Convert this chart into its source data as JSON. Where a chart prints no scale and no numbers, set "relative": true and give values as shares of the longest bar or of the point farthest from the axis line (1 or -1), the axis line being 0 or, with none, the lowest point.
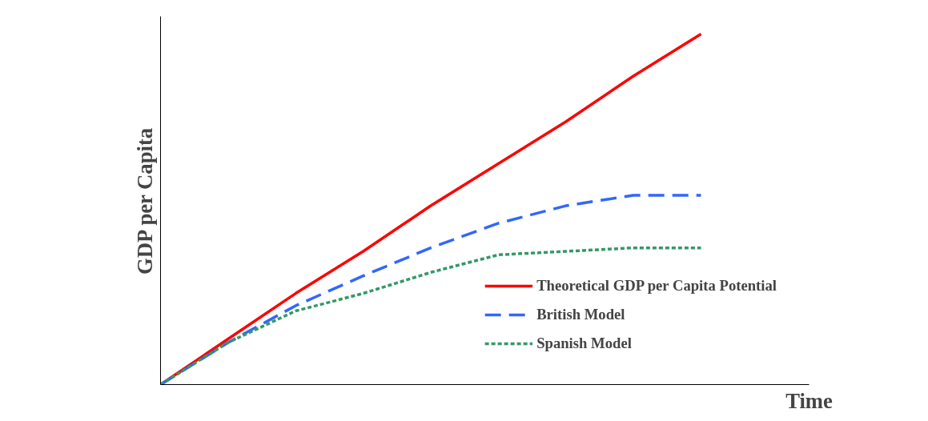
{
  "chart_data": {
    "type": "line",
    "relative": true,
    "xlabel": "Time",
    "ylabel": "GDP per Capita",
    "categories": [
      null,
      null,
      null,
      null,
      null,
      null,
      null,
      null,
      null
    ],
    "series": [
      {
        "name": "Theoretical GDP per Capita Potential",
        "color": "#ff0000",
        "line_style": "solid",
        "values": [
          0,
          0.13,
          0.26,
          0.38,
          0.51,
          0.63,
          0.75,
          0.88,
          1.0
        ]
      },
      {
        "name": "British Model",
        "color": "#3366ff",
        "line_style": "dashed",
        "values": [
          0,
          0.12,
          0.225,
          0.31,
          0.39,
          0.46,
          0.51,
          0.54,
          0.54
        ]
      },
      {
        "name": "Spanish Model",
        "color": "#339966",
        "line_style": "dotted",
        "values": [
          0,
          0.12,
          0.21,
          0.26,
          0.32,
          0.37,
          0.38,
          0.39,
          0.39
        ]
      }
    ],
    "legend": "bottom right",
    "marker": "none"
  }
}
